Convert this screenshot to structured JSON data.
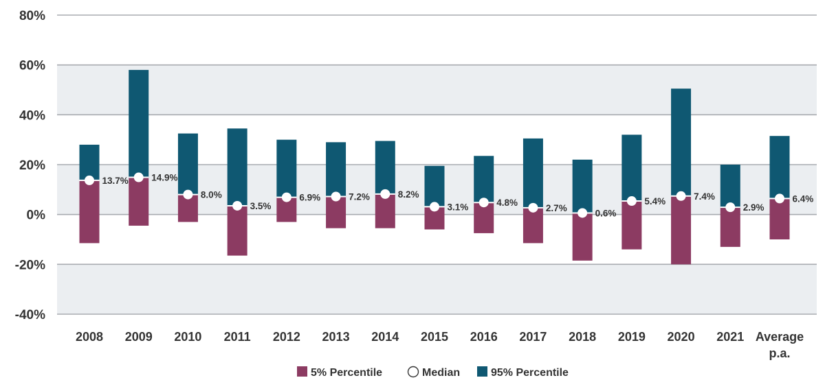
{
  "chart_data": {
    "type": "bar",
    "subtype": "floating-range-with-median",
    "categories": [
      "2008",
      "2009",
      "2010",
      "2011",
      "2012",
      "2013",
      "2014",
      "2015",
      "2016",
      "2017",
      "2018",
      "2019",
      "2020",
      "2021",
      "Average p.a."
    ],
    "series": [
      {
        "name": "5% Percentile",
        "color": "#8c3b62",
        "values": [
          -11.5,
          -4.5,
          -3.0,
          -16.5,
          -3.0,
          -5.5,
          -5.5,
          -6.0,
          -7.5,
          -11.5,
          -18.5,
          -14.0,
          -20.0,
          -13.0,
          -10.0
        ]
      },
      {
        "name": "Median",
        "color": "#ffffff",
        "values": [
          13.7,
          14.9,
          8.0,
          3.5,
          6.9,
          7.2,
          8.2,
          3.1,
          4.8,
          2.7,
          0.6,
          5.4,
          7.4,
          2.9,
          6.4
        ],
        "labels": [
          "13.7%",
          "14.9%",
          "8.0%",
          "3.5%",
          "6.9%",
          "7.2%",
          "8.2%",
          "3.1%",
          "4.8%",
          "2.7%",
          "0.6%",
          "5.4%",
          "7.4%",
          "2.9%",
          "6.4%"
        ]
      },
      {
        "name": "95% Percentile",
        "color": "#0f5872",
        "values": [
          28.0,
          58.0,
          32.5,
          34.5,
          30.0,
          29.0,
          29.5,
          19.5,
          23.5,
          30.5,
          22.0,
          32.0,
          50.5,
          20.0,
          31.5
        ]
      }
    ],
    "ylim": [
      -40,
      80
    ],
    "yticks": [
      -40,
      -20,
      0,
      20,
      40,
      60,
      80
    ],
    "ytick_labels": [
      "-40%",
      "-20%",
      "0%",
      "20%",
      "40%",
      "60%",
      "80%"
    ],
    "title": "",
    "xlabel": "",
    "ylabel": "",
    "grid": true,
    "legend_position": "bottom-center",
    "band_color": "#ebeef1",
    "grid_color": "#a8abb0"
  }
}
